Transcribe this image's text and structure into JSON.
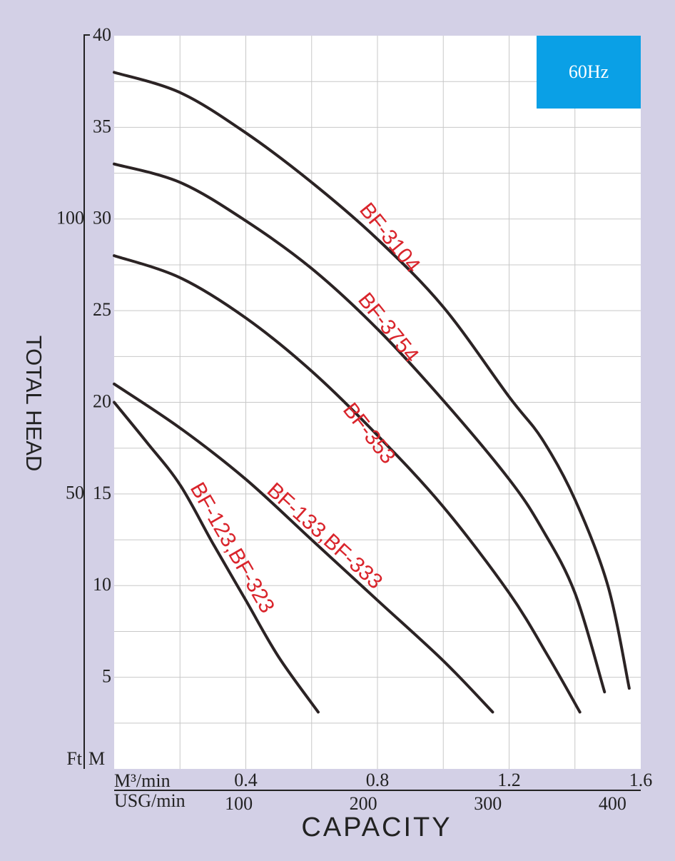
{
  "chart_data": {
    "type": "line",
    "badge": "60Hz",
    "y_axis_label": "TOTAL HEAD",
    "x_axis_label": "CAPACITY",
    "y_unit": "M",
    "y2_unit": "Ft",
    "x_unit": "M³/min",
    "x2_unit": "USG/min",
    "xlim": [
      0,
      1.6
    ],
    "xticks": [
      0.4,
      0.8,
      1.2,
      1.6
    ],
    "x_minor_ticks": [
      0.2,
      0.4,
      0.6,
      0.8,
      1.0,
      1.2,
      1.4
    ],
    "x2lim": [
      0,
      422.7
    ],
    "x2ticks": [
      100,
      200,
      300,
      400
    ],
    "ylim": [
      0,
      40
    ],
    "yticks": [
      5,
      10,
      15,
      20,
      25,
      30,
      35,
      40
    ],
    "y_minor_ticks": [
      2.5,
      5,
      7.5,
      10,
      12.5,
      15,
      17.5,
      20,
      22.5,
      25,
      27.5,
      30,
      32.5,
      35,
      37.5
    ],
    "y2lim": [
      0,
      133.3
    ],
    "y2ticks": [
      50,
      100
    ],
    "grid": true,
    "line_color": "#2b2324",
    "label_color": "#d9242b",
    "badge_color": "#0aa0e6",
    "series": [
      {
        "name": "BF-3104",
        "x": [
          0,
          0.2,
          0.4,
          0.6,
          0.8,
          1.0,
          1.2,
          1.3,
          1.4,
          1.5,
          1.565
        ],
        "values": [
          38.0,
          36.9,
          34.7,
          32.0,
          28.9,
          25.2,
          20.3,
          18.0,
          14.7,
          10.0,
          4.4
        ]
      },
      {
        "name": "BF-3754",
        "x": [
          0,
          0.2,
          0.4,
          0.6,
          0.8,
          1.0,
          1.2,
          1.3,
          1.4,
          1.49
        ],
        "values": [
          33.0,
          32.0,
          29.9,
          27.3,
          24.0,
          20.1,
          15.8,
          13.1,
          9.6,
          4.2
        ]
      },
      {
        "name": "BF-353",
        "x": [
          0,
          0.2,
          0.4,
          0.6,
          0.8,
          1.0,
          1.2,
          1.32,
          1.415
        ],
        "values": [
          28.0,
          26.8,
          24.6,
          21.7,
          18.2,
          14.3,
          9.6,
          6.1,
          3.1
        ]
      },
      {
        "name": "BF-133,BF-333",
        "x": [
          0,
          0.2,
          0.4,
          0.6,
          0.8,
          1.0,
          1.15
        ],
        "values": [
          21.0,
          18.6,
          15.8,
          12.5,
          9.2,
          5.9,
          3.1
        ]
      },
      {
        "name": "BF-123,BF-323",
        "x": [
          0,
          0.1,
          0.2,
          0.3,
          0.4,
          0.5,
          0.62
        ],
        "values": [
          20.0,
          17.8,
          15.5,
          12.3,
          9.2,
          6.1,
          3.1
        ]
      }
    ]
  }
}
